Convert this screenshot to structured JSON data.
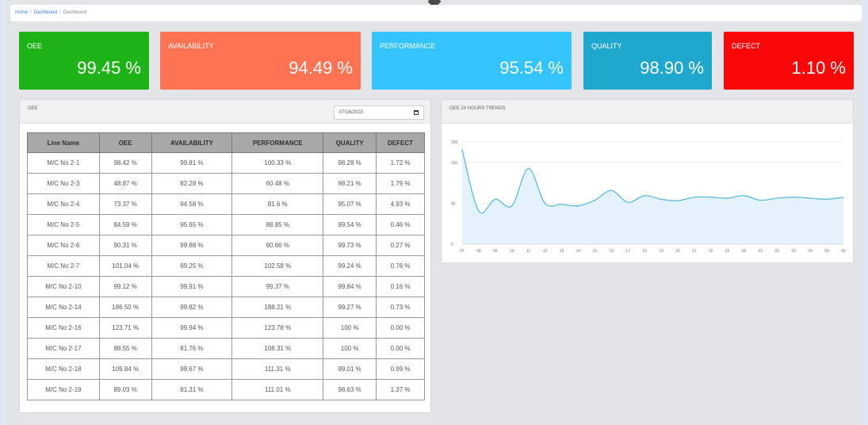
{
  "breadcrumb": {
    "items": [
      "Home",
      "Dashboard",
      "Dashboard"
    ],
    "separator": "/"
  },
  "kpis": [
    {
      "id": "oee",
      "label": "OEE",
      "value": "99.45 %",
      "color": "#1db316"
    },
    {
      "id": "availability",
      "label": "AVAILABILITY",
      "value": "94.49 %",
      "color": "#ff7352"
    },
    {
      "id": "performance",
      "label": "PERFORMANCE",
      "value": "95.54 %",
      "color": "#32c4fb"
    },
    {
      "id": "quality",
      "label": "QUALITY",
      "value": "98.90 %",
      "color": "#1fa8cd"
    },
    {
      "id": "defect",
      "label": "DEFECT",
      "value": "1.10 %",
      "color": "#fb0707"
    }
  ],
  "oee_panel": {
    "title": "OEE",
    "date_value": "07/16/2020",
    "date_icon": "calendar-icon",
    "columns": [
      "Line Name",
      "OEE",
      "AVAILABILITY",
      "PERFORMANCE",
      "QUALITY",
      "DEFECT"
    ],
    "rows": [
      [
        "M/C No 2-1",
        "98.42 %",
        "99.81 %",
        "100.33 %",
        "98.28 %",
        "1.72 %"
      ],
      [
        "M/C No 2-3",
        "48.87 %",
        "82.28 %",
        "60.48 %",
        "98.21 %",
        "1.79 %"
      ],
      [
        "M/C No 2-4",
        "73.37 %",
        "94.58 %",
        "81.6 %",
        "95.07 %",
        "4.93 %"
      ],
      [
        "M/C No 2-5",
        "84.59 %",
        "95.65 %",
        "88.85 %",
        "99.54 %",
        "0.46 %"
      ],
      [
        "M/C No 2-6",
        "90.31 %",
        "99.88 %",
        "90.66 %",
        "99.73 %",
        "0.27 %"
      ],
      [
        "M/C No 2-7",
        "101.04 %",
        "99.25 %",
        "102.58 %",
        "99.24 %",
        "0.76 %"
      ],
      [
        "M/C No 2-10",
        "99.12 %",
        "99.91 %",
        "99.37 %",
        "99.84 %",
        "0.16 %"
      ],
      [
        "M/C No 2-14",
        "186.50 %",
        "99.82 %",
        "188.21 %",
        "99.27 %",
        "0.73 %"
      ],
      [
        "M/C No 2-16",
        "123.71 %",
        "99.94 %",
        "123.78 %",
        "100 %",
        "0.00 %"
      ],
      [
        "M/C No 2-17",
        "88.55 %",
        "81.76 %",
        "108.31 %",
        "100 %",
        "0.00 %"
      ],
      [
        "M/C No 2-18",
        "109.84 %",
        "99.67 %",
        "111.31 %",
        "99.01 %",
        "0.99 %"
      ],
      [
        "M/C No 2-19",
        "89.03 %",
        "81.31 %",
        "111.01 %",
        "98.63 %",
        "1.37 %"
      ]
    ]
  },
  "trend_panel": {
    "title": "OEE 24 HOURS TRENDS"
  },
  "chart_data": {
    "type": "area",
    "title": "OEE 24 HOURS TRENDS",
    "x": [
      "07",
      "08",
      "09",
      "10",
      "11",
      "12",
      "13",
      "14",
      "15",
      "16",
      "17",
      "18",
      "19",
      "20",
      "21",
      "22",
      "23",
      "00",
      "01",
      "02",
      "03",
      "04",
      "05",
      "06"
    ],
    "series": [
      {
        "values": [
          185,
          65,
          88,
          75,
          148,
          80,
          78,
          75,
          86,
          105,
          82,
          95,
          88,
          85,
          92,
          92,
          90,
          95,
          86,
          90,
          92,
          90,
          88,
          92
        ]
      }
    ],
    "yticks": [
      0,
      80,
      160,
      200
    ],
    "ylim": [
      0,
      200
    ],
    "grid": true,
    "line_color": "#4fb8d8",
    "fill_color": "#e4f2fb"
  }
}
